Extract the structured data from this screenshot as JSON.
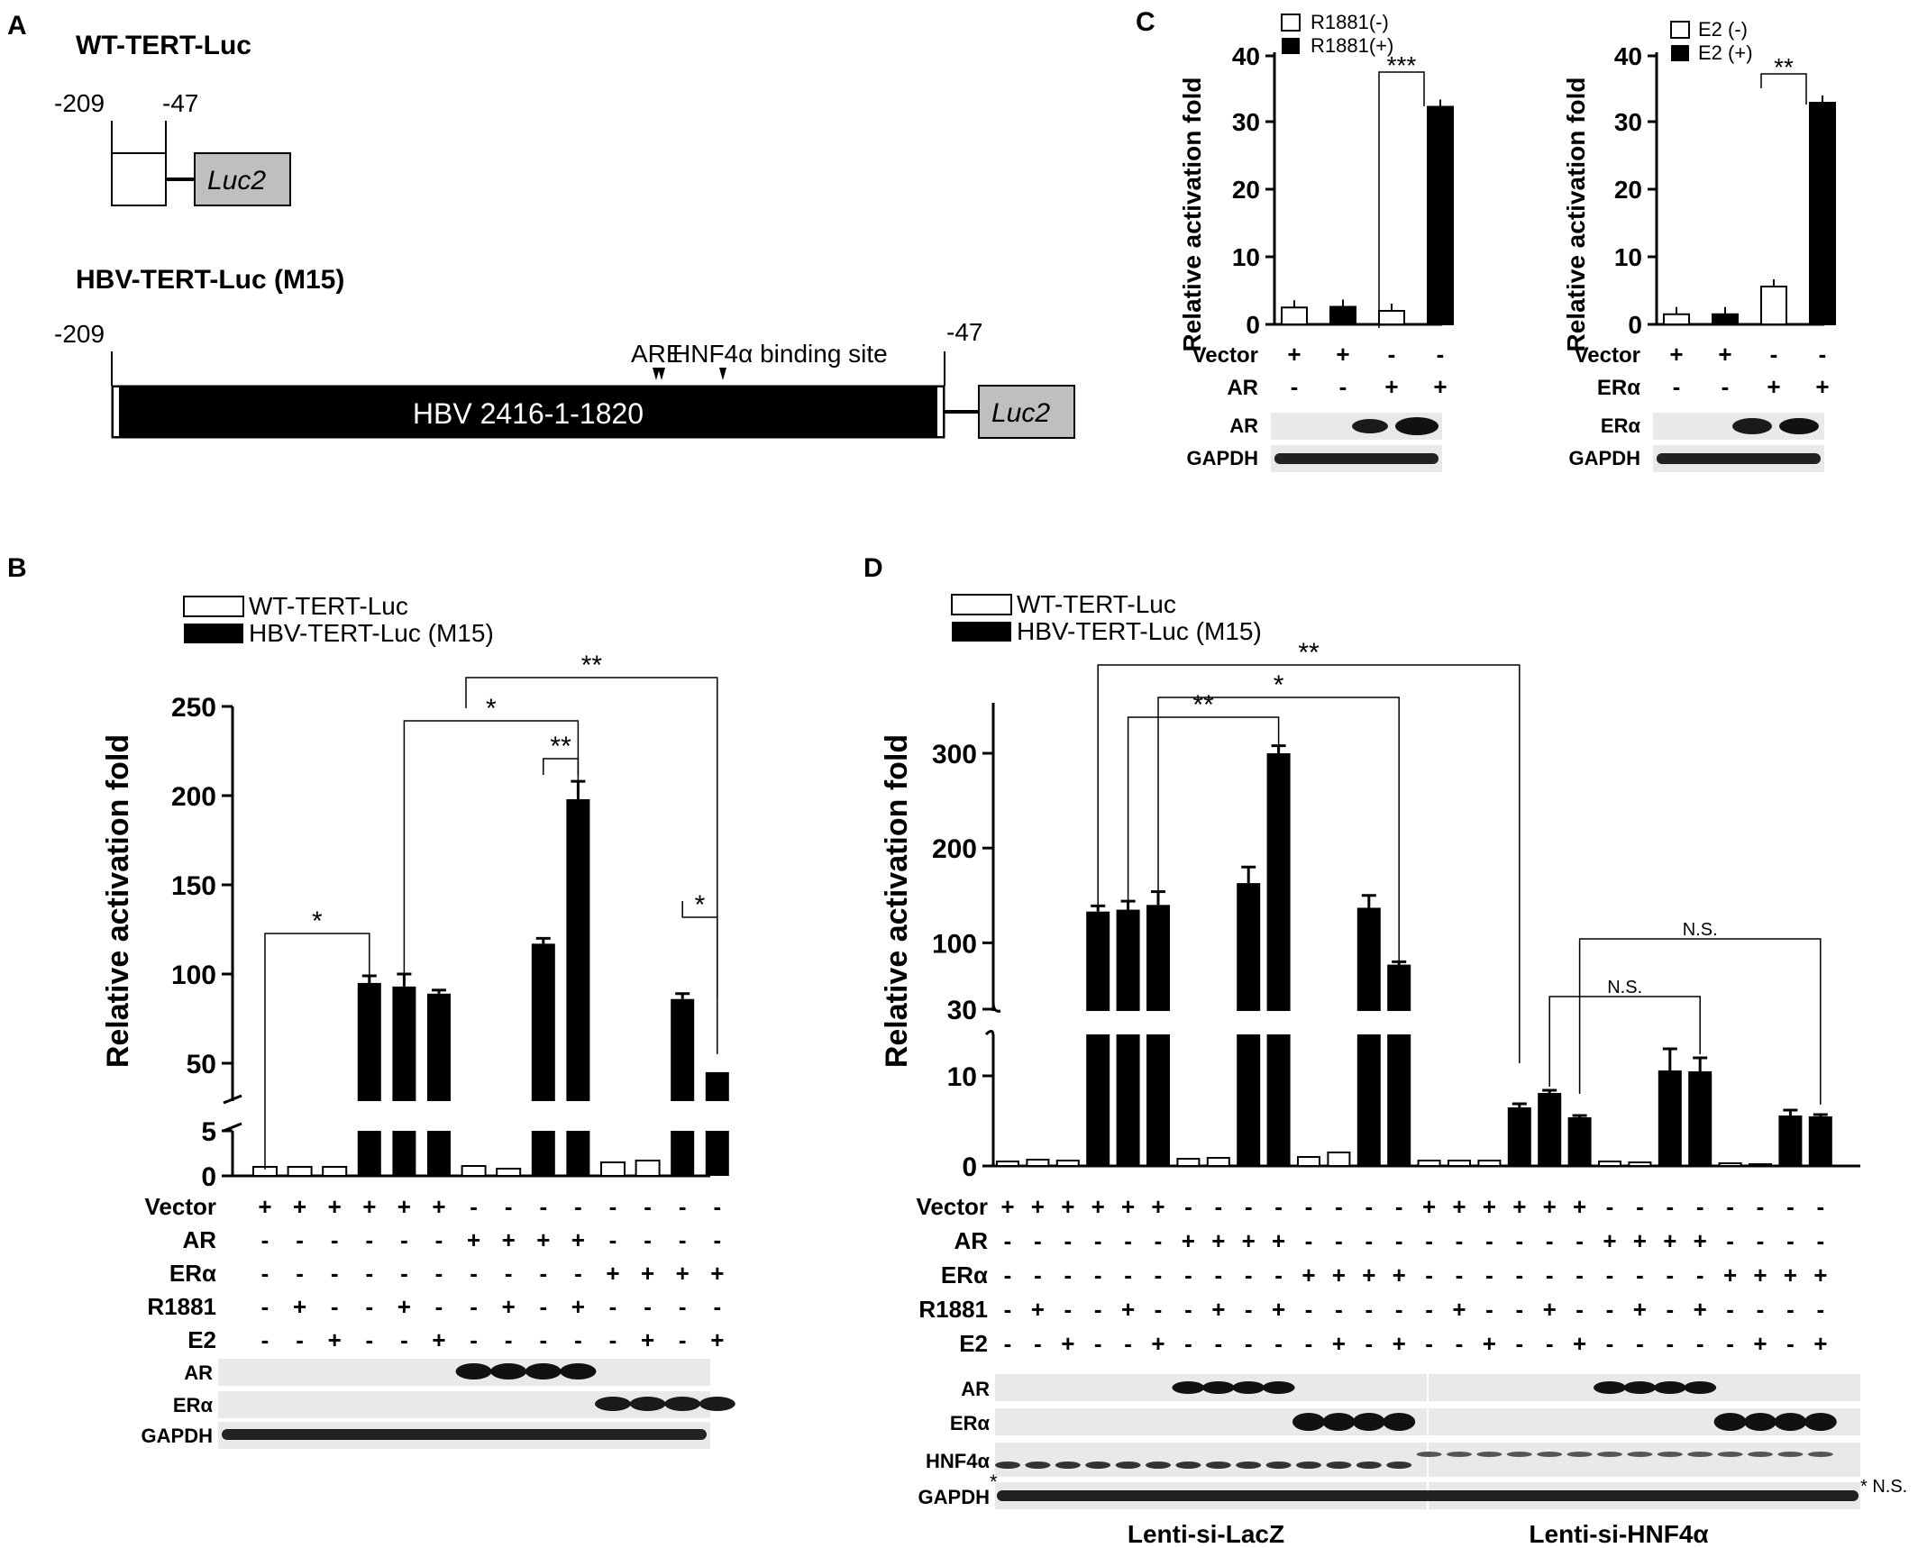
{
  "colors": {
    "filled": "#000000",
    "open": "#ffffff",
    "promoter_box": "#bfbfbf",
    "blot_bg": "#e9e9e9",
    "band": "#1a1a1a"
  },
  "panelA": {
    "letter": "A",
    "wt_title": "WT-TERT-Luc",
    "wt_left": "-209",
    "wt_right": "-47",
    "luc": "Luc2",
    "hbv_title": "HBV-TERT-Luc (M15)",
    "hbv_left": "-209",
    "hbv_right": "-47",
    "hbv_region": "HBV 2416-1-1820",
    "are": "ARE",
    "hnf4a_site": "HNF4α binding site"
  },
  "panelB": {
    "letter": "B",
    "ylabel": "Relative activation fold",
    "legend": [
      "WT-TERT-Luc",
      "HBV-TERT-Luc (M15)"
    ],
    "yticks_upper": [
      "50",
      "100",
      "150",
      "200",
      "250"
    ],
    "yticks_lower": [
      "0",
      "5"
    ],
    "conditions": [
      {
        "label": "Vector",
        "values": [
          "+",
          "+",
          "+",
          "+",
          "+",
          "+",
          "-",
          "-",
          "-",
          "-",
          "-",
          "-",
          "-",
          "-"
        ]
      },
      {
        "label": "AR",
        "values": [
          "-",
          "-",
          "-",
          "-",
          "-",
          "-",
          "+",
          "+",
          "+",
          "+",
          "-",
          "-",
          "-",
          "-"
        ]
      },
      {
        "label": "ERα",
        "values": [
          "-",
          "-",
          "-",
          "-",
          "-",
          "-",
          "-",
          "-",
          "-",
          "-",
          "+",
          "+",
          "+",
          "+"
        ]
      },
      {
        "label": "R1881",
        "values": [
          "-",
          "+",
          "-",
          "-",
          "+",
          "-",
          "-",
          "+",
          "-",
          "+",
          "-",
          "-",
          "-",
          "-"
        ]
      },
      {
        "label": "E2",
        "values": [
          "-",
          "-",
          "+",
          "-",
          "-",
          "+",
          "-",
          "-",
          "-",
          "-",
          "-",
          "+",
          "-",
          "+"
        ]
      }
    ],
    "blots": [
      "AR",
      "ERα",
      "GAPDH"
    ],
    "significance": [
      "*",
      "*",
      "**",
      "**",
      "*"
    ]
  },
  "panelC": {
    "letter": "C",
    "ylabel": "Relative activation fold",
    "left_legend": [
      "R1881(-)",
      "R1881(+)"
    ],
    "right_legend": [
      "E2 (-)",
      "E2 (+)"
    ],
    "yticks": [
      "0",
      "10",
      "20",
      "30",
      "40"
    ],
    "left_conditions": [
      {
        "label": "Vector",
        "values": [
          "+",
          "+",
          "-",
          "-"
        ]
      },
      {
        "label": "AR",
        "values": [
          "-",
          "-",
          "+",
          "+"
        ]
      }
    ],
    "right_conditions": [
      {
        "label": "Vector",
        "values": [
          "+",
          "+",
          "-",
          "-"
        ]
      },
      {
        "label": "ERα",
        "values": [
          "-",
          "-",
          "+",
          "+"
        ]
      }
    ],
    "left_blots": [
      "AR",
      "GAPDH"
    ],
    "right_blots": [
      "ERα",
      "GAPDH"
    ],
    "left_sig": "***",
    "right_sig": "**"
  },
  "panelD": {
    "letter": "D",
    "ylabel": "Relative activation fold",
    "legend": [
      "WT-TERT-Luc",
      "HBV-TERT-Luc (M15)"
    ],
    "yticks_upper": [
      "30",
      "100",
      "200",
      "300"
    ],
    "yticks_lower": [
      "0",
      "10"
    ],
    "conditions": [
      {
        "label": "Vector",
        "values": [
          "+",
          "+",
          "+",
          "+",
          "+",
          "+",
          "-",
          "-",
          "-",
          "-",
          "-",
          "-",
          "-",
          "-",
          "+",
          "+",
          "+",
          "+",
          "+",
          "+",
          "-",
          "-",
          "-",
          "-",
          "-",
          "-",
          "-",
          "-"
        ]
      },
      {
        "label": "AR",
        "values": [
          "-",
          "-",
          "-",
          "-",
          "-",
          "-",
          "+",
          "+",
          "+",
          "+",
          "-",
          "-",
          "-",
          "-",
          "-",
          "-",
          "-",
          "-",
          "-",
          "-",
          "+",
          "+",
          "+",
          "+",
          "-",
          "-",
          "-",
          "-"
        ]
      },
      {
        "label": "ERα",
        "values": [
          "-",
          "-",
          "-",
          "-",
          "-",
          "-",
          "-",
          "-",
          "-",
          "-",
          "+",
          "+",
          "+",
          "+",
          "-",
          "-",
          "-",
          "-",
          "-",
          "-",
          "-",
          "-",
          "-",
          "-",
          "+",
          "+",
          "+",
          "+"
        ]
      },
      {
        "label": "R1881",
        "values": [
          "-",
          "+",
          "-",
          "-",
          "+",
          "-",
          "-",
          "+",
          "-",
          "+",
          "-",
          "-",
          "-",
          "-",
          "-",
          "+",
          "-",
          "-",
          "+",
          "-",
          "-",
          "+",
          "-",
          "+",
          "-",
          "-",
          "-",
          "-"
        ]
      },
      {
        "label": "E2",
        "values": [
          "-",
          "-",
          "+",
          "-",
          "-",
          "+",
          "-",
          "-",
          "-",
          "-",
          "-",
          "+",
          "-",
          "+",
          "-",
          "-",
          "+",
          "-",
          "-",
          "+",
          "-",
          "-",
          "-",
          "-",
          "-",
          "+",
          "-",
          "+"
        ]
      }
    ],
    "blots": [
      "AR",
      "ERα",
      "HNF4α",
      "GAPDH"
    ],
    "hnf_star": "*",
    "ns_right": "* N.S.",
    "group1": "Lenti-si-LacZ",
    "group2": "Lenti-si-HNF4α",
    "significance": [
      "**",
      "**",
      "*",
      "N.S.",
      "N.S."
    ]
  },
  "chart_data": [
    {
      "type": "bar",
      "title": "",
      "ylabel": "Relative activation fold",
      "ylim": [
        0,
        250
      ],
      "categories": [
        "Vector",
        "Vector+R1881",
        "Vector+E2",
        "AR",
        "AR+R1881",
        "ERα",
        "ERα+E2"
      ],
      "series": [
        {
          "name": "WT-TERT-Luc",
          "values": [
            1.0,
            1.0,
            1.0,
            1.1,
            0.8,
            1.5,
            1.7
          ]
        },
        {
          "name": "HBV-TERT-Luc (M15)",
          "values": [
            95,
            93,
            89,
            117,
            198,
            86,
            40
          ]
        }
      ]
    },
    {
      "type": "bar",
      "ylabel": "Relative activation fold",
      "ylim": [
        0,
        40
      ],
      "categories": [
        "Vector",
        "AR"
      ],
      "series": [
        {
          "name": "R1881(-)",
          "values": [
            2.5,
            2.0
          ]
        },
        {
          "name": "R1881(+)",
          "values": [
            2.6,
            32.2
          ]
        }
      ]
    },
    {
      "type": "bar",
      "ylabel": "Relative activation fold",
      "ylim": [
        0,
        40
      ],
      "categories": [
        "Vector",
        "ERα"
      ],
      "series": [
        {
          "name": "E2 (-)",
          "values": [
            1.5,
            5.6
          ]
        },
        {
          "name": "E2 (+)",
          "values": [
            1.5,
            32.8
          ]
        }
      ]
    },
    {
      "type": "bar",
      "ylabel": "Relative activation fold",
      "ylim": [
        0,
        300
      ],
      "categories": [
        "Vector",
        "Vector+R1881",
        "Vector+E2",
        "AR",
        "AR+R1881",
        "ERα",
        "ERα+E2",
        "Vector",
        "Vector+R1881",
        "Vector+E2",
        "AR",
        "AR+R1881",
        "ERα",
        "ERα+E2"
      ],
      "series": [
        {
          "name": "WT-TERT-Luc",
          "values": [
            0.5,
            0.7,
            0.6,
            0.8,
            0.9,
            1.0,
            1.5,
            0.6,
            0.6,
            0.6,
            0.5,
            0.4,
            0.3,
            0.2
          ]
        },
        {
          "name": "HBV-TERT-Luc (M15)",
          "values": [
            133,
            135,
            140,
            163,
            300,
            137,
            77,
            6.5,
            8.1,
            5.4,
            10.6,
            10.5,
            5.6,
            5.5
          ]
        }
      ]
    }
  ]
}
